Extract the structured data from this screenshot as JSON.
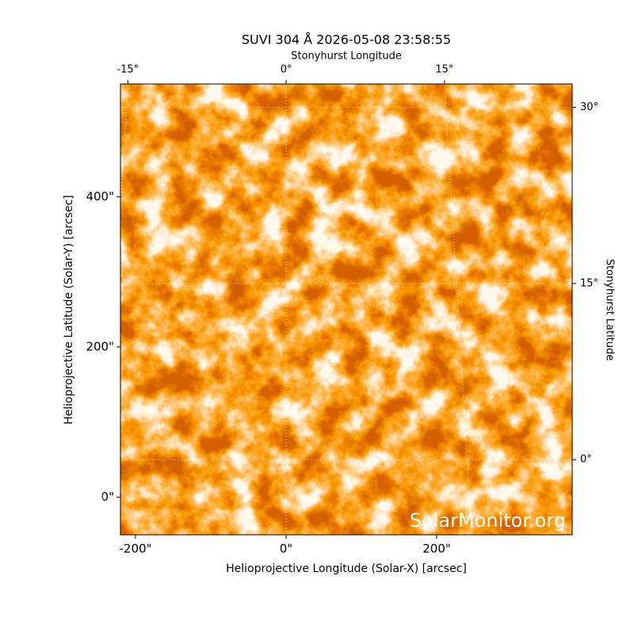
{
  "chart_data": {
    "type": "image",
    "title": "SUVI 304 Å 2026-05-08 23:58:55",
    "x_label": "Helioprojective Longitude (Solar-X) [arcsec]",
    "y_label": "Helioprojective Latitude (Solar-Y) [arcsec]",
    "x2_label": "Stonyhurst Longitude",
    "y2_label": "Stonyhurst Latitude",
    "watermark": "SolarMonitor.org",
    "xlim": [
      -220,
      380
    ],
    "ylim": [
      -50,
      550
    ],
    "xticks": [
      {
        "value": -200,
        "label": "-200\""
      },
      {
        "value": 0,
        "label": "0\""
      },
      {
        "value": 200,
        "label": "200\""
      }
    ],
    "yticks": [
      {
        "value": 0,
        "label": "0\""
      },
      {
        "value": 200,
        "label": "200\""
      },
      {
        "value": 400,
        "label": "400\""
      }
    ],
    "x2lim": [
      -15.7,
      27.1
    ],
    "x2ticks": [
      {
        "value": -15,
        "label": "-15°"
      },
      {
        "value": 0,
        "label": "0°"
      },
      {
        "value": 15,
        "label": "15°"
      }
    ],
    "y2lim": [
      -6.4,
      32
    ],
    "y2ticks": [
      {
        "value": 0,
        "label": "0°"
      },
      {
        "value": 15,
        "label": "15°"
      },
      {
        "value": 30,
        "label": "30°"
      }
    ],
    "grid": true
  }
}
